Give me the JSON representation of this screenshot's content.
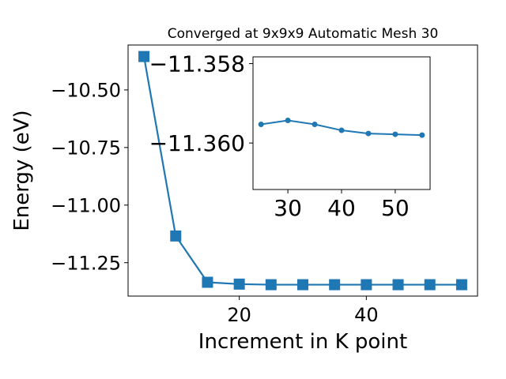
{
  "chart_data": [
    {
      "type": "line",
      "title": "Converged at 9x9x9 Automatic Mesh 30",
      "xlabel": "Increment in K point",
      "ylabel": "Energy (eV)",
      "x": [
        5,
        10,
        15,
        20,
        25,
        30,
        35,
        40,
        45,
        50,
        55
      ],
      "y": [
        -10.355,
        -11.134,
        -11.335,
        -11.343,
        -11.3455,
        -11.3455,
        -11.3455,
        -11.3455,
        -11.3455,
        -11.3455,
        -11.3455
      ],
      "xlim": [
        2.5,
        57.5
      ],
      "ylim": [
        -11.395,
        -10.305
      ],
      "xticks": [
        20,
        40
      ],
      "xtick_labels": [
        "20",
        "40"
      ],
      "yticks": [
        -11.25,
        -11.0,
        -10.75,
        -10.5
      ],
      "ytick_labels": [
        "−11.25",
        "−11.00",
        "−10.75",
        "−10.50"
      ],
      "marker": "square",
      "color": "#1f77b4",
      "grid": false
    },
    {
      "type": "line",
      "role": "inset",
      "x": [
        25,
        30,
        35,
        40,
        45,
        50,
        55
      ],
      "y": [
        -11.35953,
        -11.35943,
        -11.35953,
        -11.35968,
        -11.35976,
        -11.35978,
        -11.3598
      ],
      "xlim": [
        23.5,
        56.5
      ],
      "ylim": [
        -11.36117,
        -11.35783
      ],
      "xticks": [
        30,
        40,
        50
      ],
      "xtick_labels": [
        "30",
        "40",
        "50"
      ],
      "yticks": [
        -11.36,
        -11.358
      ],
      "ytick_labels": [
        "−11.360",
        "−11.358"
      ],
      "marker": "circle",
      "color": "#1f77b4",
      "grid": false
    }
  ]
}
